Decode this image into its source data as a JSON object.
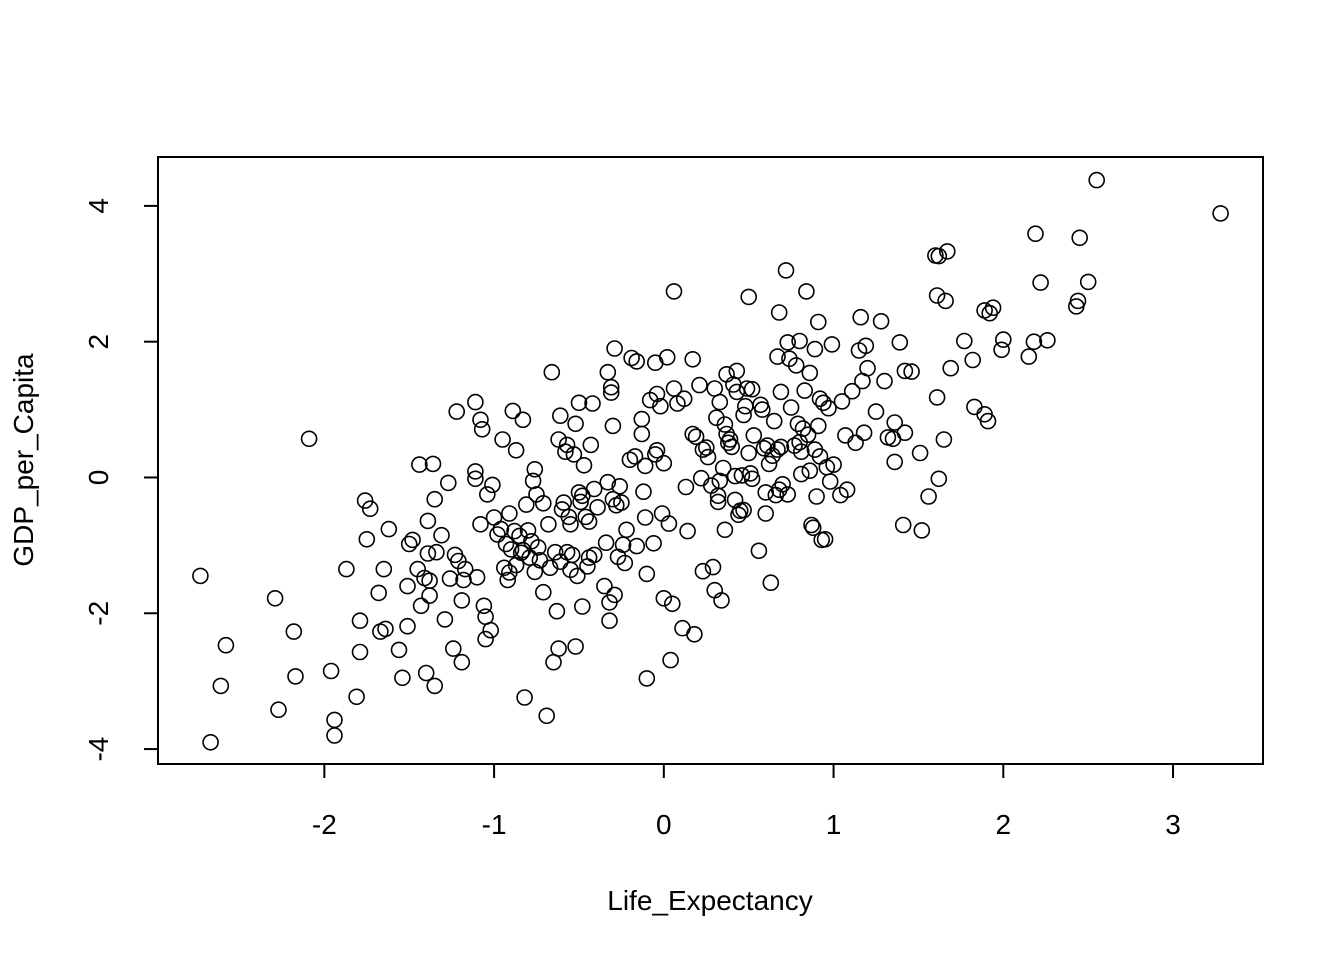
{
  "chart_data": {
    "type": "scatter",
    "xlabel": "Life_Expectancy",
    "ylabel": "GDP_per_Capita",
    "xlim": [
      -2.98,
      3.53
    ],
    "ylim": [
      -4.22,
      4.72
    ],
    "x_ticks": [
      -2,
      -1,
      0,
      1,
      2,
      3
    ],
    "y_ticks": [
      -4,
      -2,
      0,
      2,
      4
    ],
    "x_tick_labels": [
      "-2",
      "-1",
      "0",
      "1",
      "2",
      "3"
    ],
    "y_tick_labels": [
      "-4",
      "-2",
      "0",
      "2",
      "4"
    ],
    "grid": false,
    "marker": "open-circle",
    "color": "#000000",
    "points": [
      [
        -2.73,
        -1.45
      ],
      [
        -2.67,
        -3.9
      ],
      [
        -2.61,
        -3.07
      ],
      [
        -2.58,
        -2.47
      ],
      [
        -2.29,
        -1.78
      ],
      [
        -2.27,
        -3.42
      ],
      [
        -2.18,
        -2.27
      ],
      [
        -2.17,
        -2.93
      ],
      [
        -2.09,
        0.57
      ],
      [
        -1.96,
        -2.85
      ],
      [
        -1.94,
        -3.57
      ],
      [
        -1.94,
        -3.8
      ],
      [
        -1.87,
        -1.35
      ],
      [
        -1.81,
        -3.23
      ],
      [
        -1.79,
        -2.11
      ],
      [
        -1.79,
        -2.57
      ],
      [
        -1.76,
        -0.34
      ],
      [
        -1.75,
        -0.91
      ],
      [
        -1.73,
        -0.46
      ],
      [
        -1.68,
        -1.7
      ],
      [
        -1.67,
        -2.27
      ],
      [
        -1.65,
        -1.35
      ],
      [
        -1.64,
        -2.23
      ],
      [
        -1.62,
        -0.76
      ],
      [
        -1.56,
        -2.54
      ],
      [
        -1.54,
        -2.95
      ],
      [
        -1.51,
        -1.6
      ],
      [
        -1.51,
        -2.19
      ],
      [
        -1.5,
        -0.98
      ],
      [
        -1.48,
        -0.92
      ],
      [
        -1.45,
        -1.35
      ],
      [
        -1.44,
        0.19
      ],
      [
        -1.43,
        -1.89
      ],
      [
        -1.41,
        -1.48
      ],
      [
        -1.4,
        -2.88
      ],
      [
        -1.39,
        -1.12
      ],
      [
        -1.39,
        -0.64
      ],
      [
        -1.38,
        -1.52
      ],
      [
        -1.38,
        -1.74
      ],
      [
        -1.36,
        0.2
      ],
      [
        -1.35,
        -3.07
      ],
      [
        -1.35,
        -0.32
      ],
      [
        -1.34,
        -1.1
      ],
      [
        -1.31,
        -0.85
      ],
      [
        -1.29,
        -2.09
      ],
      [
        -1.27,
        -0.08
      ],
      [
        -1.26,
        -1.49
      ],
      [
        -1.24,
        -2.52
      ],
      [
        -1.23,
        -1.14
      ],
      [
        -1.22,
        0.97
      ],
      [
        -1.21,
        -1.23
      ],
      [
        -1.19,
        -2.72
      ],
      [
        -1.19,
        -1.81
      ],
      [
        -1.18,
        -1.51
      ],
      [
        -1.17,
        -1.35
      ],
      [
        -1.11,
        0.09
      ],
      [
        -1.11,
        -0.02
      ],
      [
        -1.11,
        1.11
      ],
      [
        -1.1,
        -1.47
      ],
      [
        -1.08,
        0.85
      ],
      [
        -1.08,
        -0.69
      ],
      [
        -1.07,
        0.71
      ],
      [
        -1.06,
        -1.89
      ],
      [
        -1.05,
        -2.05
      ],
      [
        -1.05,
        -2.38
      ],
      [
        -1.04,
        -0.25
      ],
      [
        -1.02,
        -2.25
      ],
      [
        -1.01,
        -0.11
      ],
      [
        -1.0,
        -0.59
      ],
      [
        -0.98,
        -0.84
      ],
      [
        -0.96,
        -0.76
      ],
      [
        -0.95,
        0.56
      ],
      [
        -0.94,
        -1.33
      ],
      [
        -0.93,
        -0.98
      ],
      [
        -0.92,
        -1.51
      ],
      [
        -0.91,
        -0.53
      ],
      [
        -0.91,
        -1.4
      ],
      [
        -0.9,
        -1.06
      ],
      [
        -0.89,
        0.98
      ],
      [
        -0.88,
        -0.79
      ],
      [
        -0.87,
        -1.29
      ],
      [
        -0.87,
        0.4
      ],
      [
        -0.85,
        -0.86
      ],
      [
        -0.84,
        -1.11
      ],
      [
        -0.83,
        -1.07
      ],
      [
        -0.83,
        0.85
      ],
      [
        -0.82,
        -3.24
      ],
      [
        -0.81,
        -0.4
      ],
      [
        -0.8,
        -0.78
      ],
      [
        -0.79,
        -1.18
      ],
      [
        -0.78,
        -0.94
      ],
      [
        -0.77,
        -0.05
      ],
      [
        -0.76,
        -1.39
      ],
      [
        -0.76,
        0.12
      ],
      [
        -0.75,
        -0.25
      ],
      [
        -0.74,
        -1.03
      ],
      [
        -0.73,
        -1.22
      ],
      [
        -0.71,
        -1.69
      ],
      [
        -0.71,
        -0.38
      ],
      [
        -0.69,
        -3.51
      ],
      [
        -0.68,
        -0.69
      ],
      [
        -0.67,
        -1.33
      ],
      [
        -0.66,
        1.55
      ],
      [
        -0.65,
        -2.72
      ],
      [
        -0.64,
        -1.1
      ],
      [
        -0.63,
        -1.97
      ],
      [
        -0.62,
        0.56
      ],
      [
        -0.62,
        -2.52
      ],
      [
        -0.61,
        -1.24
      ],
      [
        -0.61,
        0.91
      ],
      [
        -0.6,
        -0.47
      ],
      [
        -0.59,
        -0.37
      ],
      [
        -0.58,
        0.38
      ],
      [
        -0.57,
        0.48
      ],
      [
        -0.57,
        -1.1
      ],
      [
        -0.56,
        -0.58
      ],
      [
        -0.55,
        -1.36
      ],
      [
        -0.55,
        -0.69
      ],
      [
        -0.54,
        -1.14
      ],
      [
        -0.53,
        0.34
      ],
      [
        -0.52,
        -2.49
      ],
      [
        -0.52,
        0.79
      ],
      [
        -0.51,
        -1.45
      ],
      [
        -0.5,
        -0.22
      ],
      [
        -0.5,
        1.1
      ],
      [
        -0.49,
        -0.36
      ],
      [
        -0.48,
        -0.27
      ],
      [
        -0.48,
        -1.9
      ],
      [
        -0.47,
        0.18
      ],
      [
        -0.46,
        -0.58
      ],
      [
        -0.45,
        -1.31
      ],
      [
        -0.44,
        -0.65
      ],
      [
        -0.44,
        -1.18
      ],
      [
        -0.43,
        0.48
      ],
      [
        -0.42,
        1.09
      ],
      [
        -0.41,
        -0.17
      ],
      [
        -0.41,
        -1.14
      ],
      [
        -0.39,
        -0.44
      ],
      [
        -0.35,
        -1.6
      ],
      [
        -0.34,
        -0.96
      ],
      [
        -0.33,
        -0.07
      ],
      [
        -0.33,
        1.55
      ],
      [
        -0.32,
        -1.84
      ],
      [
        -0.32,
        -2.11
      ],
      [
        -0.31,
        1.33
      ],
      [
        -0.31,
        1.25
      ],
      [
        -0.3,
        -0.32
      ],
      [
        -0.3,
        0.76
      ],
      [
        -0.29,
        1.9
      ],
      [
        -0.29,
        -1.73
      ],
      [
        -0.28,
        -0.41
      ],
      [
        -0.27,
        -1.17
      ],
      [
        -0.26,
        -0.13
      ],
      [
        -0.25,
        -0.37
      ],
      [
        -0.24,
        -0.99
      ],
      [
        -0.23,
        -1.26
      ],
      [
        -0.22,
        -0.77
      ],
      [
        -0.2,
        0.26
      ],
      [
        -0.19,
        1.76
      ],
      [
        -0.17,
        0.31
      ],
      [
        -0.16,
        1.71
      ],
      [
        -0.16,
        -1.01
      ],
      [
        -0.13,
        0.86
      ],
      [
        -0.13,
        0.64
      ],
      [
        -0.12,
        -0.21
      ],
      [
        -0.11,
        0.17
      ],
      [
        -0.11,
        -0.59
      ],
      [
        -0.1,
        -1.42
      ],
      [
        -0.1,
        -2.96
      ],
      [
        -0.08,
        1.14
      ],
      [
        -0.06,
        -0.97
      ],
      [
        -0.05,
        1.69
      ],
      [
        -0.05,
        0.34
      ],
      [
        -0.04,
        0.4
      ],
      [
        -0.04,
        1.23
      ],
      [
        -0.02,
        1.05
      ],
      [
        -0.01,
        -0.53
      ],
      [
        0.0,
        0.21
      ],
      [
        0.0,
        -1.78
      ],
      [
        0.02,
        1.77
      ],
      [
        0.03,
        -0.68
      ],
      [
        0.04,
        -2.69
      ],
      [
        0.05,
        -1.86
      ],
      [
        0.06,
        1.31
      ],
      [
        0.06,
        2.74
      ],
      [
        0.08,
        1.09
      ],
      [
        0.11,
        -2.22
      ],
      [
        0.12,
        1.16
      ],
      [
        0.13,
        -0.14
      ],
      [
        0.14,
        -0.79
      ],
      [
        0.17,
        1.74
      ],
      [
        0.17,
        0.64
      ],
      [
        0.18,
        -2.31
      ],
      [
        0.19,
        0.6
      ],
      [
        0.21,
        1.36
      ],
      [
        0.22,
        -0.01
      ],
      [
        0.23,
        0.41
      ],
      [
        0.23,
        -1.38
      ],
      [
        0.25,
        0.44
      ],
      [
        0.26,
        0.3
      ],
      [
        0.28,
        -0.12
      ],
      [
        0.29,
        -1.32
      ],
      [
        0.3,
        1.31
      ],
      [
        0.3,
        -1.66
      ],
      [
        0.31,
        0.88
      ],
      [
        0.32,
        -0.36
      ],
      [
        0.32,
        -0.27
      ],
      [
        0.33,
        -0.05
      ],
      [
        0.33,
        1.11
      ],
      [
        0.34,
        -1.81
      ],
      [
        0.35,
        0.14
      ],
      [
        0.36,
        0.78
      ],
      [
        0.36,
        -0.77
      ],
      [
        0.37,
        1.52
      ],
      [
        0.37,
        0.64
      ],
      [
        0.38,
        0.51
      ],
      [
        0.39,
        0.56
      ],
      [
        0.4,
        0.45
      ],
      [
        0.41,
        1.37
      ],
      [
        0.42,
        0.02
      ],
      [
        0.42,
        -0.33
      ],
      [
        0.43,
        1.57
      ],
      [
        0.43,
        1.26
      ],
      [
        0.44,
        -0.55
      ],
      [
        0.45,
        -0.49
      ],
      [
        0.46,
        0.03
      ],
      [
        0.47,
        0.92
      ],
      [
        0.47,
        -0.48
      ],
      [
        0.48,
        1.05
      ],
      [
        0.49,
        1.31
      ],
      [
        0.5,
        0.36
      ],
      [
        0.5,
        2.66
      ],
      [
        0.51,
        0.06
      ],
      [
        0.52,
        1.3
      ],
      [
        0.52,
        -0.02
      ],
      [
        0.53,
        0.62
      ],
      [
        0.56,
        -1.08
      ],
      [
        0.57,
        1.07
      ],
      [
        0.58,
        1.0
      ],
      [
        0.59,
        0.43
      ],
      [
        0.6,
        -0.22
      ],
      [
        0.6,
        -0.53
      ],
      [
        0.61,
        0.47
      ],
      [
        0.62,
        0.2
      ],
      [
        0.63,
        -1.55
      ],
      [
        0.64,
        0.32
      ],
      [
        0.65,
        0.83
      ],
      [
        0.66,
        -0.26
      ],
      [
        0.67,
        0.41
      ],
      [
        0.67,
        1.78
      ],
      [
        0.68,
        2.43
      ],
      [
        0.68,
        -0.18
      ],
      [
        0.69,
        0.45
      ],
      [
        0.69,
        1.26
      ],
      [
        0.7,
        -0.1
      ],
      [
        0.72,
        3.05
      ],
      [
        0.73,
        1.99
      ],
      [
        0.73,
        -0.25
      ],
      [
        0.74,
        1.75
      ],
      [
        0.75,
        1.03
      ],
      [
        0.77,
        0.47
      ],
      [
        0.78,
        1.65
      ],
      [
        0.79,
        0.79
      ],
      [
        0.8,
        2.01
      ],
      [
        0.8,
        0.52
      ],
      [
        0.81,
        0.05
      ],
      [
        0.81,
        0.38
      ],
      [
        0.82,
        0.72
      ],
      [
        0.83,
        1.28
      ],
      [
        0.84,
        2.74
      ],
      [
        0.85,
        0.63
      ],
      [
        0.86,
        1.54
      ],
      [
        0.86,
        0.1
      ],
      [
        0.87,
        -0.7
      ],
      [
        0.88,
        -0.74
      ],
      [
        0.89,
        0.41
      ],
      [
        0.89,
        1.89
      ],
      [
        0.9,
        -0.28
      ],
      [
        0.91,
        0.76
      ],
      [
        0.91,
        2.29
      ],
      [
        0.92,
        1.16
      ],
      [
        0.92,
        0.31
      ],
      [
        0.93,
        -0.92
      ],
      [
        0.94,
        1.1
      ],
      [
        0.95,
        -0.91
      ],
      [
        0.96,
        0.15
      ],
      [
        0.97,
        1.02
      ],
      [
        0.98,
        -0.06
      ],
      [
        0.99,
        1.96
      ],
      [
        1.0,
        0.19
      ],
      [
        1.04,
        -0.26
      ],
      [
        1.05,
        1.12
      ],
      [
        1.07,
        0.62
      ],
      [
        1.08,
        -0.18
      ],
      [
        1.11,
        1.27
      ],
      [
        1.13,
        0.51
      ],
      [
        1.15,
        1.87
      ],
      [
        1.16,
        2.36
      ],
      [
        1.17,
        1.42
      ],
      [
        1.18,
        0.66
      ],
      [
        1.19,
        1.94
      ],
      [
        1.2,
        1.61
      ],
      [
        1.25,
        0.97
      ],
      [
        1.28,
        2.3
      ],
      [
        1.3,
        1.42
      ],
      [
        1.32,
        0.59
      ],
      [
        1.35,
        0.57
      ],
      [
        1.36,
        0.23
      ],
      [
        1.36,
        0.81
      ],
      [
        1.39,
        1.99
      ],
      [
        1.41,
        -0.7
      ],
      [
        1.42,
        0.66
      ],
      [
        1.42,
        1.57
      ],
      [
        1.46,
        1.56
      ],
      [
        1.51,
        0.36
      ],
      [
        1.52,
        -0.78
      ],
      [
        1.56,
        -0.28
      ],
      [
        1.6,
        3.27
      ],
      [
        1.61,
        1.18
      ],
      [
        1.61,
        2.68
      ],
      [
        1.62,
        3.26
      ],
      [
        1.62,
        -0.02
      ],
      [
        1.65,
        0.56
      ],
      [
        1.66,
        2.6
      ],
      [
        1.67,
        3.33
      ],
      [
        1.69,
        1.61
      ],
      [
        1.77,
        2.01
      ],
      [
        1.82,
        1.73
      ],
      [
        1.83,
        1.04
      ],
      [
        1.89,
        2.46
      ],
      [
        1.89,
        0.93
      ],
      [
        1.91,
        0.83
      ],
      [
        1.92,
        2.42
      ],
      [
        1.94,
        2.5
      ],
      [
        1.99,
        1.88
      ],
      [
        2.0,
        2.03
      ],
      [
        2.15,
        1.78
      ],
      [
        2.18,
        2.0
      ],
      [
        2.19,
        3.59
      ],
      [
        2.22,
        2.87
      ],
      [
        2.26,
        2.02
      ],
      [
        2.43,
        2.52
      ],
      [
        2.44,
        2.6
      ],
      [
        2.45,
        3.53
      ],
      [
        2.5,
        2.88
      ],
      [
        2.55,
        4.38
      ],
      [
        3.28,
        3.89
      ]
    ]
  }
}
